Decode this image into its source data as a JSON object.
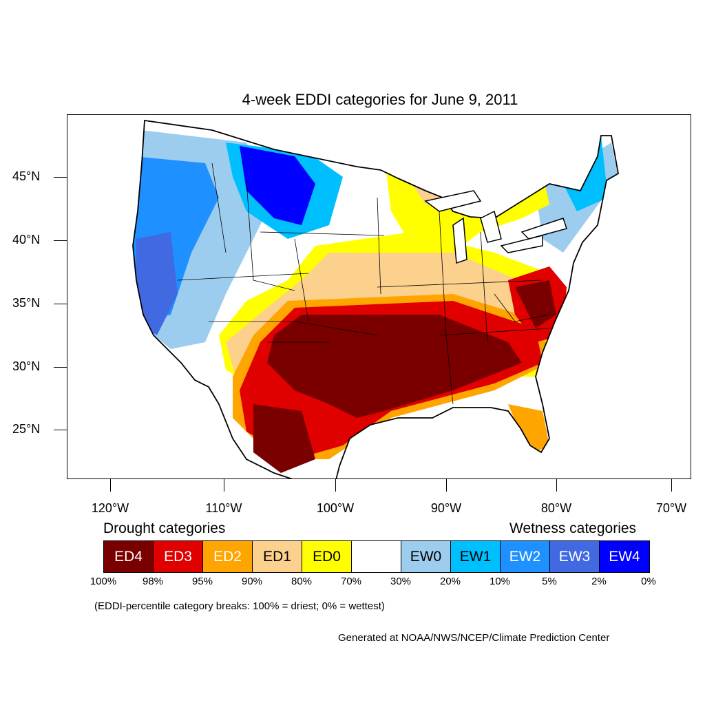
{
  "title": "4-week EDDI categories for June 9, 2011",
  "lat_labels": [
    "45°N",
    "40°N",
    "35°N",
    "30°N",
    "25°N"
  ],
  "lon_labels": [
    "120°W",
    "110°W",
    "100°W",
    "90°W",
    "80°W",
    "70°W"
  ],
  "legend": {
    "drought_title": "Drought categories",
    "wetness_title": "Wetness categories",
    "categories": [
      {
        "label": "ED4",
        "color": "#7a0000",
        "text_color": "#ffffff"
      },
      {
        "label": "ED3",
        "color": "#e00000",
        "text_color": "#ffffff"
      },
      {
        "label": "ED2",
        "color": "#ffa500",
        "text_color": "#ffffff"
      },
      {
        "label": "ED1",
        "color": "#fcd08d",
        "text_color": "#000000"
      },
      {
        "label": "ED0",
        "color": "#ffff00",
        "text_color": "#000000"
      },
      {
        "label": "",
        "color": "#ffffff",
        "text_color": "#000000"
      },
      {
        "label": "EW0",
        "color": "#9ccdef",
        "text_color": "#000000"
      },
      {
        "label": "EW1",
        "color": "#00bfff",
        "text_color": "#000000"
      },
      {
        "label": "EW2",
        "color": "#1e90ff",
        "text_color": "#ffffff"
      },
      {
        "label": "EW3",
        "color": "#4169e1",
        "text_color": "#ffffff"
      },
      {
        "label": "EW4",
        "color": "#0000ff",
        "text_color": "#ffffff"
      }
    ],
    "breaks": [
      "100%",
      "98%",
      "95%",
      "90%",
      "80%",
      "70%",
      "30%",
      "20%",
      "10%",
      "5%",
      "2%",
      "0%"
    ]
  },
  "note": "(EDDI-percentile category breaks: 100% = driest; 0% = wettest)",
  "credit": "Generated at NOAA/NWS/NCEP/Climate Prediction Center"
}
